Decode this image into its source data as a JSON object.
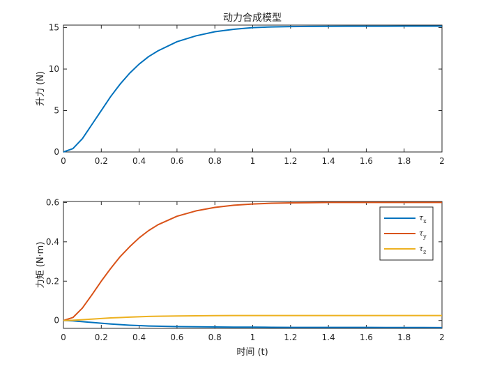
{
  "chart_data": [
    {
      "type": "line",
      "title": "动力合成模型",
      "xlabel": "",
      "ylabel": "升力 (N)",
      "xlim": [
        0,
        2
      ],
      "ylim": [
        0,
        15.3
      ],
      "xticks": [
        "0",
        "0.2",
        "0.4",
        "0.6",
        "0.8",
        "1",
        "1.2",
        "1.4",
        "1.6",
        "1.8",
        "2"
      ],
      "yticks": [
        "0",
        "5",
        "10",
        "15"
      ],
      "grid": false,
      "x": [
        0,
        0.05,
        0.1,
        0.15,
        0.2,
        0.25,
        0.3,
        0.35,
        0.4,
        0.45,
        0.5,
        0.6,
        0.7,
        0.8,
        0.9,
        1.0,
        1.1,
        1.2,
        1.3,
        1.4,
        1.5,
        1.6,
        1.7,
        1.8,
        1.9,
        2.0
      ],
      "series": [
        {
          "name": "",
          "color": "#0072BD",
          "values": [
            0,
            0.4,
            1.6,
            3.3,
            5.0,
            6.7,
            8.2,
            9.5,
            10.6,
            11.5,
            12.2,
            13.3,
            14.0,
            14.5,
            14.8,
            15.0,
            15.08,
            15.12,
            15.14,
            15.15,
            15.16,
            15.16,
            15.16,
            15.17,
            15.17,
            15.17
          ]
        }
      ]
    },
    {
      "type": "line",
      "title": "",
      "xlabel": "时间 (t)",
      "ylabel": "力矩 (N·m)",
      "xlim": [
        0,
        2
      ],
      "ylim": [
        -0.04,
        0.605
      ],
      "xticks": [
        "0",
        "0.2",
        "0.4",
        "0.6",
        "0.8",
        "1",
        "1.2",
        "1.4",
        "1.6",
        "1.8",
        "2"
      ],
      "yticks": [
        "0",
        "0.2",
        "0.4",
        "0.6"
      ],
      "grid": false,
      "legend": "top-right",
      "x": [
        0,
        0.05,
        0.1,
        0.15,
        0.2,
        0.25,
        0.3,
        0.35,
        0.4,
        0.45,
        0.5,
        0.6,
        0.7,
        0.8,
        0.9,
        1.0,
        1.1,
        1.2,
        1.3,
        1.4,
        1.5,
        1.6,
        1.7,
        1.8,
        1.9,
        2.0
      ],
      "series": [
        {
          "name": "τ",
          "sub": "x",
          "color": "#0072BD",
          "values": [
            0,
            -0.002,
            -0.006,
            -0.01,
            -0.014,
            -0.018,
            -0.021,
            -0.024,
            -0.026,
            -0.028,
            -0.029,
            -0.031,
            -0.032,
            -0.033,
            -0.034,
            -0.034,
            -0.0345,
            -0.035,
            -0.035,
            -0.035,
            -0.0352,
            -0.0352,
            -0.0354,
            -0.0356,
            -0.0358,
            -0.036
          ]
        },
        {
          "name": "τ",
          "sub": "y",
          "color": "#D95319",
          "values": [
            0,
            0.015,
            0.063,
            0.13,
            0.2,
            0.265,
            0.325,
            0.375,
            0.42,
            0.457,
            0.487,
            0.53,
            0.557,
            0.575,
            0.586,
            0.592,
            0.596,
            0.598,
            0.599,
            0.6,
            0.6,
            0.6,
            0.6,
            0.6,
            0.6,
            0.6
          ]
        },
        {
          "name": "τ",
          "sub": "z",
          "color": "#EDB120",
          "values": [
            0,
            0.001,
            0.004,
            0.007,
            0.01,
            0.013,
            0.015,
            0.017,
            0.019,
            0.0205,
            0.0215,
            0.023,
            0.024,
            0.0245,
            0.025,
            0.025,
            0.0252,
            0.0253,
            0.0253,
            0.0253,
            0.0253,
            0.0253,
            0.0253,
            0.0253,
            0.0253,
            0.0253
          ]
        }
      ]
    }
  ]
}
